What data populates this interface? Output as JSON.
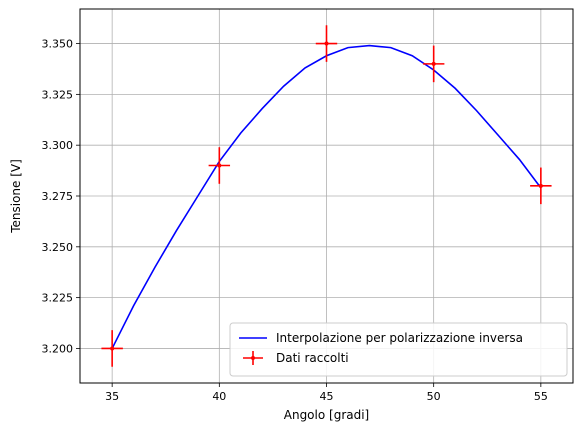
{
  "chart_data": {
    "type": "scatter",
    "xlabel": "Angolo [gradi]",
    "ylabel": "Tensione [V]",
    "xlim": [
      33.5,
      56.5
    ],
    "ylim": [
      3.183,
      3.367
    ],
    "xticks": [
      35,
      40,
      45,
      50,
      55
    ],
    "xtick_labels": [
      "35",
      "40",
      "45",
      "50",
      "55"
    ],
    "yticks": [
      3.2,
      3.225,
      3.25,
      3.275,
      3.3,
      3.325,
      3.35
    ],
    "ytick_labels": [
      "3.200",
      "3.225",
      "3.250",
      "3.275",
      "3.300",
      "3.325",
      "3.350"
    ],
    "grid": true,
    "legend_position": "lower-right",
    "series": [
      {
        "name": "Interpolazione per polarizzazione inversa",
        "kind": "line",
        "color": "#0000ff",
        "x": [
          35,
          36,
          37,
          38,
          39,
          40,
          41,
          42,
          43,
          44,
          45,
          46,
          47,
          48,
          49,
          50,
          51,
          52,
          53,
          54,
          55
        ],
        "y": [
          3.2,
          3.221,
          3.24,
          3.258,
          3.275,
          3.292,
          3.306,
          3.318,
          3.329,
          3.338,
          3.344,
          3.348,
          3.349,
          3.348,
          3.344,
          3.337,
          3.328,
          3.317,
          3.305,
          3.293,
          3.279
        ]
      },
      {
        "name": "Dati raccolti",
        "kind": "errorbar",
        "color": "#ff0000",
        "x": [
          35,
          40,
          45,
          50,
          55
        ],
        "y": [
          3.2,
          3.29,
          3.35,
          3.34,
          3.28
        ],
        "xerr": 0.5,
        "yerr": 0.009
      }
    ]
  }
}
